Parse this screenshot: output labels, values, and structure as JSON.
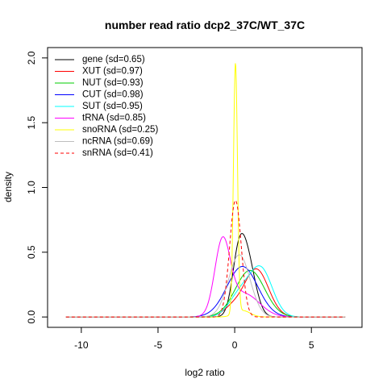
{
  "chart_data": {
    "type": "line",
    "title": "number read ratio dcp2_37C/WT_37C",
    "xlabel": "log2 ratio",
    "ylabel": "density",
    "xlim": [
      -12.2,
      8.3
    ],
    "ylim": [
      -0.08,
      2.08
    ],
    "x_ticks": [
      -10,
      -5,
      0,
      5
    ],
    "y_ticks": [
      0.0,
      0.5,
      1.0,
      1.5,
      2.0
    ],
    "x_tick_labels": [
      "-10",
      "-5",
      "0",
      "5"
    ],
    "y_tick_labels": [
      "0.0",
      "0.5",
      "1.0",
      "1.5",
      "2.0"
    ],
    "grid": false,
    "legend_position": "top-left",
    "x_range": [
      -11,
      7.2
    ],
    "series": [
      {
        "name": "gene (sd=0.65)",
        "color": "#000000",
        "dash": "solid",
        "peaks": [
          [
            0.75,
            0.55,
            0.48
          ],
          [
            0.2,
            0.4,
            0.28
          ]
        ]
      },
      {
        "name": "XUT (sd=0.97)",
        "color": "#FF0000",
        "dash": "solid",
        "peaks": [
          [
            1.4,
            0.8,
            0.37
          ],
          [
            -0.2,
            0.6,
            0.06
          ]
        ]
      },
      {
        "name": "NUT (sd=0.93)",
        "color": "#00CD00",
        "dash": "solid",
        "peaks": [
          [
            1.0,
            0.95,
            0.36
          ]
        ]
      },
      {
        "name": "CUT (sd=0.98)",
        "color": "#0000FF",
        "dash": "solid",
        "peaks": [
          [
            0.5,
            1.0,
            0.39
          ]
        ]
      },
      {
        "name": "SUT (sd=0.95)",
        "color": "#00FFFF",
        "dash": "solid",
        "peaks": [
          [
            1.7,
            0.75,
            0.37
          ],
          [
            0.3,
            0.7,
            0.16
          ]
        ]
      },
      {
        "name": "tRNA (sd=0.85)",
        "color": "#FF00FF",
        "dash": "solid",
        "peaks": [
          [
            -0.8,
            0.5,
            0.55
          ],
          [
            0.6,
            1.0,
            0.18
          ]
        ]
      },
      {
        "name": "snoRNA (sd=0.25)",
        "color": "#FFFF00",
        "dash": "solid",
        "peaks": [
          [
            0.05,
            0.13,
            1.93
          ],
          [
            0.5,
            0.5,
            0.05
          ]
        ]
      },
      {
        "name": "ncRNA (sd=0.69)",
        "color": "#BEBEBE",
        "dash": "solid",
        "peaks": [
          [
            0.3,
            0.7,
            0.48
          ]
        ]
      },
      {
        "name": "snRNA (sd=0.41)",
        "color": "#FF0000",
        "dash": "dashed",
        "peaks": [
          [
            0.05,
            0.38,
            0.9
          ]
        ]
      }
    ]
  }
}
